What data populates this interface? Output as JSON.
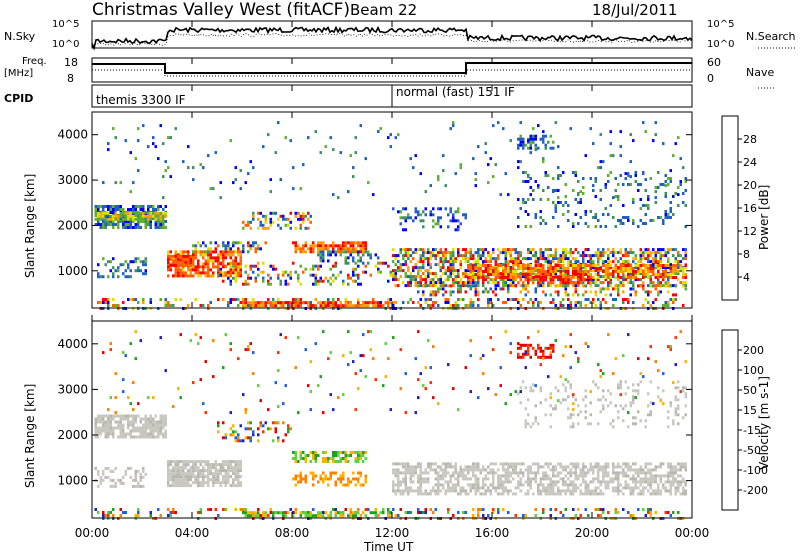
{
  "header": {
    "title": "Christmas Valley West (fitACF)",
    "beam": "Beam 22",
    "date": "18/Jul/2011"
  },
  "panels": {
    "nsky_label": "N.Sky",
    "nsky_ticks": [
      "10^5",
      "10^0"
    ],
    "nsearch_label": "N.Search",
    "freq_label_1": "Freq.",
    "freq_label_2": "[MHz]",
    "freq_ticks": [
      "18",
      "8"
    ],
    "nave_label": "Nave",
    "nave_ticks": [
      "60",
      "0"
    ],
    "cpid_label": "CPID",
    "cpid_1": "themis 3300 IF",
    "cpid_2": "normal (fast) 151 IF"
  },
  "chart_data": [
    {
      "type": "heatmap",
      "name": "power",
      "ylabel": "Slant Range [km]",
      "yticks": [
        "1000",
        "2000",
        "3000",
        "4000"
      ],
      "colorbar_label": "Power [dB]",
      "colorbar_ticks": [
        "4",
        "8",
        "12",
        "16",
        "20",
        "24",
        "28"
      ],
      "colors": [
        "#0000ff",
        "#2060c0",
        "#409060",
        "#60b030",
        "#e0e000",
        "#ffa000",
        "#ff6000",
        "#ff0000"
      ]
    },
    {
      "type": "heatmap",
      "name": "velocity",
      "ylabel": "Slant Range [km]",
      "yticks": [
        "1000",
        "2000",
        "3000",
        "4000"
      ],
      "colorbar_label": "Velocity [m s-1]",
      "colorbar_ticks": [
        "200",
        "100",
        "50",
        "15",
        "-15",
        "-50",
        "-100",
        "-200"
      ],
      "colors": [
        "#2020c0",
        "#2060e0",
        "#20a020",
        "#60d040",
        "#c8c8c0",
        "#ffb000",
        "#ff8000",
        "#ff3000",
        "#e00000"
      ]
    }
  ],
  "time_axis": {
    "xlabel": "Time UT",
    "ticks": [
      "00:00",
      "04:00",
      "08:00",
      "12:00",
      "16:00",
      "20:00",
      "00:00"
    ]
  }
}
